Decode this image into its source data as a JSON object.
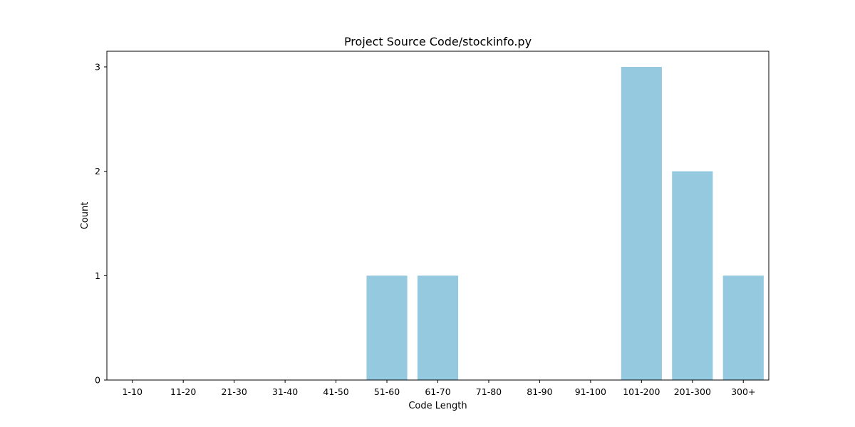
{
  "chart_data": {
    "type": "bar",
    "title": "Project Source Code/stockinfo.py",
    "xlabel": "Code Length",
    "ylabel": "Count",
    "categories": [
      "1-10",
      "11-20",
      "21-30",
      "31-40",
      "41-50",
      "51-60",
      "61-70",
      "71-80",
      "81-90",
      "91-100",
      "101-200",
      "201-300",
      "300+"
    ],
    "values": [
      0,
      0,
      0,
      0,
      0,
      1,
      1,
      0,
      0,
      0,
      3,
      2,
      1
    ],
    "ylim": [
      0,
      3.15
    ],
    "yticks": [
      0,
      1,
      2,
      3
    ],
    "grid": false,
    "bar_color": "#95c9df"
  }
}
